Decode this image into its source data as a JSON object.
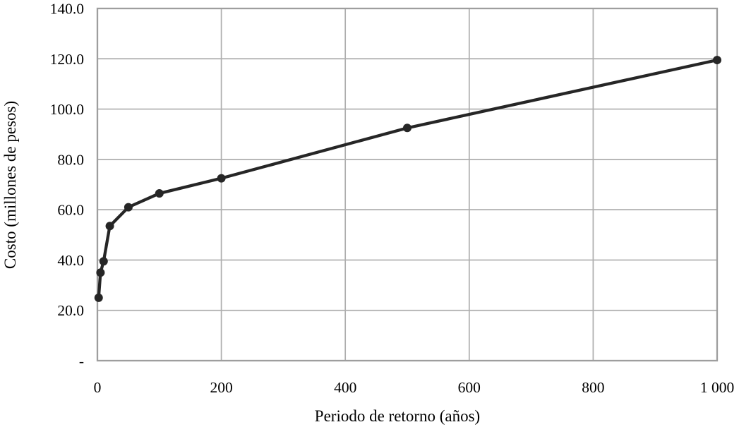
{
  "chart_data": {
    "type": "line",
    "title": "",
    "xlabel": "Periodo de retorno (años)",
    "ylabel": "Costo (millones de pesos)",
    "series": [
      {
        "name": "Costo",
        "x": [
          2,
          5,
          10,
          20,
          50,
          100,
          200,
          500,
          1000
        ],
        "y": [
          25.0,
          35.0,
          39.5,
          53.5,
          61.0,
          66.5,
          72.5,
          92.5,
          119.5
        ]
      }
    ],
    "xlim": [
      0,
      1000
    ],
    "ylim": [
      0,
      140
    ],
    "x_ticks": [
      {
        "value": 0,
        "label": "0"
      },
      {
        "value": 200,
        "label": "200"
      },
      {
        "value": 400,
        "label": "400"
      },
      {
        "value": 600,
        "label": "600"
      },
      {
        "value": 800,
        "label": "800"
      },
      {
        "value": 1000,
        "label": "1 000"
      }
    ],
    "y_ticks": [
      {
        "value": 0,
        "label": "-"
      },
      {
        "value": 20,
        "label": "20.0"
      },
      {
        "value": 40,
        "label": "40.0"
      },
      {
        "value": 60,
        "label": "60.0"
      },
      {
        "value": 80,
        "label": "80.0"
      },
      {
        "value": 100,
        "label": "100.0"
      },
      {
        "value": 120,
        "label": "120.0"
      },
      {
        "value": 140,
        "label": "140.0"
      }
    ],
    "grid": true,
    "legend_position": "none",
    "marker": "circle",
    "colors": {
      "line": "#262626",
      "marker": "#262626",
      "grid": "#aeaeae",
      "border": "#9e9e9e",
      "text": "#000000",
      "background": "#ffffff"
    }
  }
}
